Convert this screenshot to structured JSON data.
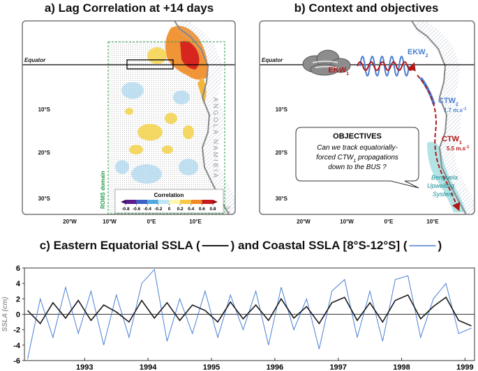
{
  "chart_data": [
    {
      "type": "map",
      "title": "a) Lag Correlation at +14 days",
      "equator": "Equator",
      "lat_labels": [
        "10°S",
        "20°S",
        "30°S"
      ],
      "lon_labels": [
        "20°W",
        "10°W",
        "0°E",
        "10°E"
      ],
      "regions": [
        "ANGOLA",
        "NAMIBIA",
        "S.A"
      ],
      "domain_label": "ROMS domain",
      "colorbar": {
        "label": "Correlation",
        "ticks": [
          -0.8,
          -0.6,
          -0.4,
          -0.2,
          0,
          0.2,
          0.4,
          0.6,
          0.8
        ]
      }
    },
    {
      "type": "map",
      "title": "b) Context and objectives",
      "equator": "Equator",
      "lat_labels": [
        "10°S",
        "20°S",
        "30°S"
      ],
      "lon_labels": [
        "20°W",
        "10°W",
        "0°E",
        "10°E"
      ],
      "annotations": {
        "ekw1": {
          "text": "EKW",
          "sub": "1"
        },
        "ekw2": {
          "text": "EKW",
          "sub": "2"
        },
        "ctw2": {
          "text": "CTW",
          "sub": "2"
        },
        "ctw2_speed": {
          "text": "1.7 m.s",
          "sup": "-1"
        },
        "ctw1": {
          "text": "CTW",
          "sub": "1"
        },
        "ctw1_speed": {
          "text": "5.5 m.s",
          "sup": "-1"
        },
        "objectives": "OBJECTIVES",
        "question_line1": "Can we track equatorially-",
        "question_line2": {
          "text": "forced CTW",
          "sub": "1",
          "rest": " propagations"
        },
        "question_line3": "down to the BUS ?",
        "bus": [
          "Benguela",
          "Upwelling",
          "System"
        ]
      }
    },
    {
      "type": "line",
      "title_parts": [
        "c) Eastern Equatorial SSLA (",
        ") and Coastal SSLA [8°S-12°S] (",
        ")"
      ],
      "ylabel": "SSLA (cm)",
      "x": [
        1992.6,
        1992.8,
        1993.0,
        1993.2,
        1993.4,
        1993.6,
        1993.8,
        1994.0,
        1994.2,
        1994.4,
        1994.6,
        1994.8,
        1995.0,
        1995.2,
        1995.4,
        1995.6,
        1995.8,
        1996.0,
        1996.2,
        1996.4,
        1996.6,
        1996.8,
        1997.0,
        1997.2,
        1997.4,
        1997.6,
        1997.8,
        1998.0,
        1998.2,
        1998.4,
        1998.6,
        1998.8,
        1999.0,
        1999.2,
        1999.4,
        1999.6
      ],
      "series": [
        {
          "color": "#1a1a1a",
          "values": [
            0.5,
            -1.2,
            1.5,
            -0.5,
            1.8,
            -0.8,
            1.2,
            0.3,
            -1,
            1.8,
            -0.5,
            1.5,
            -0.8,
            1.2,
            0.5,
            -1,
            1.6,
            -0.6,
            1.2,
            -0.8,
            2,
            -0.5,
            1,
            -1.2,
            1.5,
            2.2,
            -0.8,
            1.5,
            -1,
            1.8,
            2.5,
            -0.6,
            1,
            2.2,
            -0.8,
            -1.5
          ]
        },
        {
          "color": "#4a7fd4",
          "values": [
            -5.8,
            2,
            -3,
            3.5,
            -2.5,
            3,
            -4,
            2.5,
            -3,
            4,
            5.8,
            -3.5,
            2,
            -2.5,
            3,
            -3,
            2.5,
            -2,
            3,
            -4,
            3.5,
            -2,
            2,
            -4.5,
            3,
            4.5,
            -3,
            3,
            -3.5,
            4.5,
            5,
            -3,
            2,
            4,
            -2.5,
            -1.8
          ]
        }
      ],
      "xlim": [
        1992.55,
        1999.65
      ],
      "xticks": [
        {
          "value": 1993.5,
          "label": "1993"
        },
        {
          "value": 1994.5,
          "label": "1994"
        },
        {
          "value": 1995.5,
          "label": "1995"
        },
        {
          "value": 1996.5,
          "label": "1996"
        },
        {
          "value": 1997.5,
          "label": "1997"
        },
        {
          "value": 1998.5,
          "label": "1998"
        },
        {
          "value": 1999.5,
          "label": "1999"
        }
      ],
      "ylim": [
        -6,
        6
      ],
      "yticks": [
        -6,
        -4,
        -2,
        0,
        2,
        4,
        6
      ]
    }
  ]
}
